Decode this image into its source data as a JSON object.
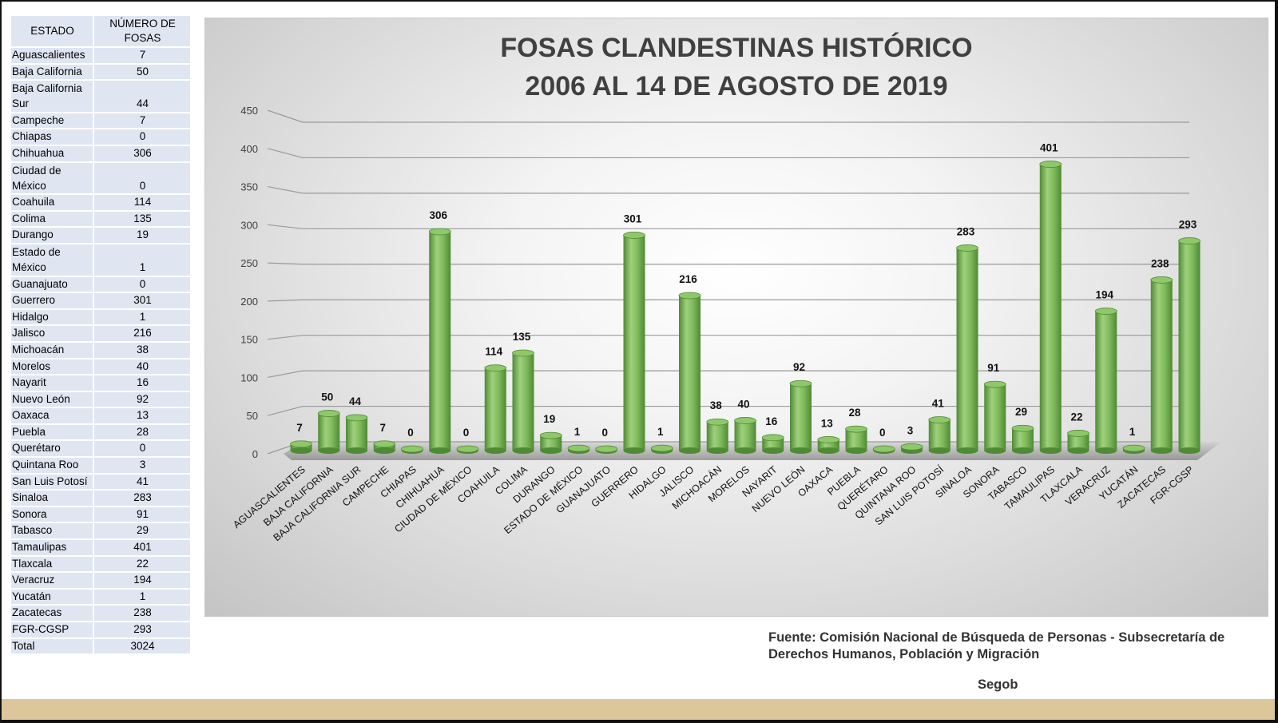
{
  "table": {
    "headers": [
      "ESTADO",
      "NÚMERO DE FOSAS"
    ],
    "rows": [
      [
        "Aguascalientes",
        "7"
      ],
      [
        "Baja California",
        "50"
      ],
      [
        "Baja California Sur",
        "44"
      ],
      [
        "Campeche",
        "7"
      ],
      [
        "Chiapas",
        "0"
      ],
      [
        "Chihuahua",
        "306"
      ],
      [
        "Ciudad de México",
        "0"
      ],
      [
        "Coahuila",
        "114"
      ],
      [
        "Colima",
        "135"
      ],
      [
        "Durango",
        "19"
      ],
      [
        "Estado de México",
        "1"
      ],
      [
        "Guanajuato",
        "0"
      ],
      [
        "Guerrero",
        "301"
      ],
      [
        "Hidalgo",
        "1"
      ],
      [
        "Jalisco",
        "216"
      ],
      [
        "Michoacán",
        "38"
      ],
      [
        "Morelos",
        "40"
      ],
      [
        "Nayarit",
        "16"
      ],
      [
        "Nuevo León",
        "92"
      ],
      [
        "Oaxaca",
        "13"
      ],
      [
        "Puebla",
        "28"
      ],
      [
        "Querétaro",
        "0"
      ],
      [
        "Quintana Roo",
        "3"
      ],
      [
        "San Luis Potosí",
        "41"
      ],
      [
        "Sinaloa",
        "283"
      ],
      [
        "Sonora",
        "91"
      ],
      [
        "Tabasco",
        "29"
      ],
      [
        "Tamaulipas",
        "401"
      ],
      [
        "Tlaxcala",
        "22"
      ],
      [
        "Veracruz",
        "194"
      ],
      [
        "Yucatán",
        "1"
      ],
      [
        "Zacatecas",
        "238"
      ],
      [
        "FGR-CGSP",
        "293"
      ],
      [
        "Total",
        "3024"
      ]
    ]
  },
  "chart_data": {
    "type": "bar",
    "title": "FOSAS CLANDESTINAS HISTÓRICO",
    "subtitle": "2006 AL 14 DE AGOSTO DE 2019",
    "categories": [
      "AGUASCALIENTES",
      "BAJA CALIFORNIA",
      "BAJA CALIFORNIA SUR",
      "CAMPECHE",
      "CHIAPAS",
      "CHIHUAHUA",
      "CIUDAD DE MÉXICO",
      "COAHUILA",
      "COLIMA",
      "DURANGO",
      "ESTADO DE MÉXICO",
      "GUANAJUATO",
      "GUERRERO",
      "HIDALGO",
      "JALISCO",
      "MICHOACÁN",
      "MORELOS",
      "NAYARIT",
      "NUEVO LEÓN",
      "OAXACA",
      "PUEBLA",
      "QUERÉTARO",
      "QUINTANA ROO",
      "SAN LUIS POTOSÍ",
      "SINALOA",
      "SONORA",
      "TABASCO",
      "TAMAULIPAS",
      "TLAXCALA",
      "VERACRUZ",
      "YUCATÁN",
      "ZACATECAS",
      "FGR-CGSP"
    ],
    "values": [
      7,
      50,
      44,
      7,
      0,
      306,
      0,
      114,
      135,
      19,
      1,
      0,
      301,
      1,
      216,
      38,
      40,
      16,
      92,
      13,
      28,
      0,
      3,
      41,
      283,
      91,
      29,
      401,
      22,
      194,
      1,
      238,
      293
    ],
    "yticks": [
      "0",
      "50",
      "100",
      "150",
      "200",
      "250",
      "300",
      "350",
      "400",
      "450"
    ],
    "ylim": [
      0,
      450
    ],
    "grid": true,
    "bar_color": "#7fba5c",
    "bar_dark": "#4f8a34"
  },
  "source": {
    "text": "Fuente: Comisión Nacional de Búsqueda de Personas - Subsecretaría de Derechos Humanos, Población y Migración",
    "org": "Segob"
  }
}
